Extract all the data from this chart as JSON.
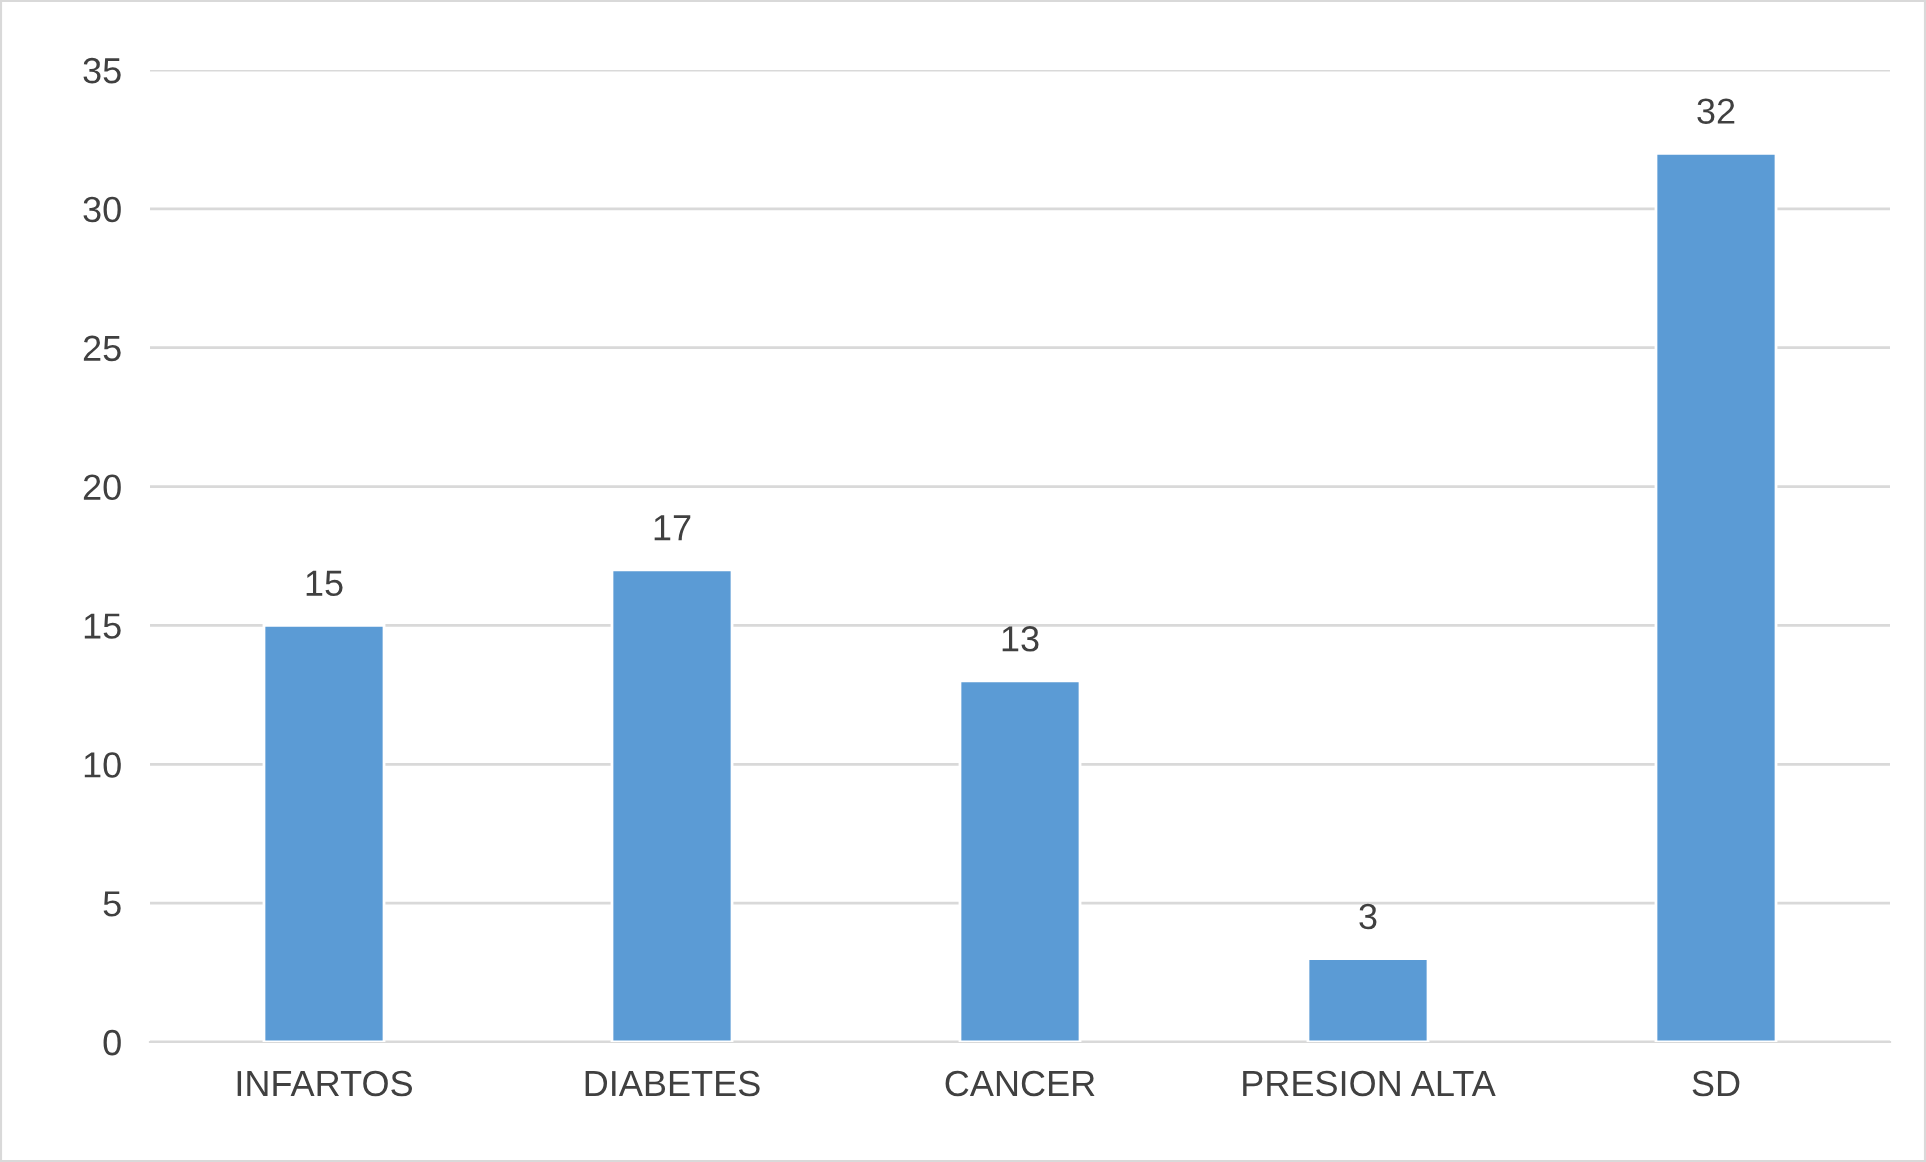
{
  "chart_data": {
    "type": "bar",
    "categories": [
      "INFARTOS",
      "DIABETES",
      "CANCER",
      "PRESION ALTA",
      "SD"
    ],
    "values": [
      15,
      17,
      13,
      3,
      32
    ],
    "color": "#5b9bd5",
    "ylim": [
      0,
      35
    ],
    "yticks": [
      0,
      5,
      10,
      15,
      20,
      25,
      30,
      35
    ],
    "grid": "y",
    "data_labels": true,
    "legend": false
  }
}
